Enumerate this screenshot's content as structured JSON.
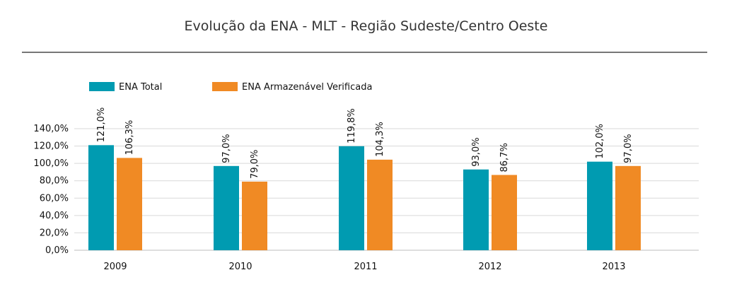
{
  "chart_data": {
    "type": "bar",
    "title": "Evolução da ENA - MLT - Região Sudeste/Centro Oeste",
    "categories": [
      "2009",
      "2010",
      "2011",
      "2012",
      "2013"
    ],
    "series": [
      {
        "name": "ENA Total",
        "color": "#009bb1",
        "values": [
          121.0,
          97.0,
          119.8,
          93.0,
          102.0
        ],
        "labels": [
          "121,0%",
          "97,0%",
          "119,8%",
          "93,0%",
          "102,0%"
        ]
      },
      {
        "name": "ENA Armazenável Verificada",
        "color": "#f08a24",
        "values": [
          106.3,
          79.0,
          104.3,
          86.7,
          97.0
        ],
        "labels": [
          "106,3%",
          "79,0%",
          "104,3%",
          "86,7%",
          "97,0%"
        ]
      }
    ],
    "ylim": [
      0,
      140
    ],
    "yticks": [
      0,
      20,
      40,
      60,
      80,
      100,
      120,
      140
    ],
    "ytick_labels": [
      "0,0%",
      "20,0%",
      "40,0%",
      "60,0%",
      "80,0%",
      "100,0%",
      "120,0%",
      "140,0%"
    ],
    "grid": true,
    "legend": "top-left",
    "xlabel": "",
    "ylabel": ""
  }
}
